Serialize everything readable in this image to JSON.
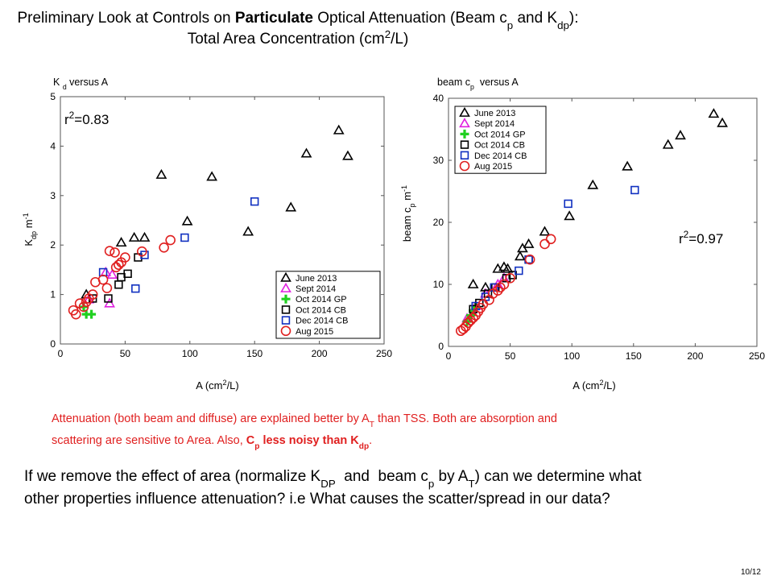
{
  "slide": {
    "title": [
      [
        {
          "text": "Preliminary Look at Controls on "
        },
        {
          "text": "Particulate",
          "style": "bold"
        },
        {
          "text": " Optical Attenuation (Beam c"
        },
        {
          "text": "p",
          "style": "sub"
        },
        {
          "text": " and K"
        },
        {
          "text": "dp",
          "style": "sub"
        },
        {
          "text": "):"
        }
      ],
      [
        {
          "text": "Total Area Concentration (cm"
        },
        {
          "text": "2",
          "style": "sup"
        },
        {
          "text": "/L)"
        }
      ]
    ],
    "note": [
      [
        {
          "text": "Attenuation (both beam and diffuse) are explained better by A"
        },
        {
          "text": "T",
          "style": "sub"
        },
        {
          "text": " than TSS. Both are absorption and"
        }
      ],
      [
        {
          "text": "scattering are sensitive to Area. Also, "
        },
        {
          "text": "C",
          "style": "bold"
        },
        {
          "text": "p",
          "style": "bold sub"
        },
        {
          "text": " less noisy than K",
          "style": "bold"
        },
        {
          "text": "dp",
          "style": "bold sub"
        },
        {
          "text": "."
        }
      ]
    ],
    "question": [
      [
        {
          "text": "If we remove the effect of area (normalize K"
        },
        {
          "text": "DP",
          "style": "sub"
        },
        {
          "text": "  and  beam c"
        },
        {
          "text": "p",
          "style": "sub"
        },
        {
          "text": " by A"
        },
        {
          "text": "T",
          "style": "sub"
        },
        {
          "text": ") can we determine what"
        }
      ],
      [
        {
          "text": "other properties influence attenuation? i.e What causes the scatter/spread in our data?"
        }
      ]
    ],
    "page": "10/12"
  },
  "chart_data": [
    {
      "type": "scatter",
      "title": [
        {
          "text": "K "
        },
        {
          "text": "d",
          "style": "sub"
        },
        {
          "text": " versus A"
        }
      ],
      "xlabel": [
        {
          "text": "A (cm"
        },
        {
          "text": "2",
          "style": "sup"
        },
        {
          "text": "/L)"
        }
      ],
      "ylabel": [
        {
          "text": "K"
        },
        {
          "text": "dp",
          "style": "sub"
        },
        {
          "text": " m"
        },
        {
          "text": "-1",
          "style": "sup"
        }
      ],
      "annotation": [
        {
          "text": "r"
        },
        {
          "text": "2",
          "style": "sup"
        },
        {
          "text": "=0.83"
        }
      ],
      "xlim": [
        0,
        250
      ],
      "xticks": [
        0,
        50,
        100,
        150,
        200,
        250
      ],
      "ylim": [
        0,
        5
      ],
      "yticks": [
        0,
        1,
        2,
        3,
        4,
        5
      ],
      "legend": "lower right",
      "series": [
        {
          "name": "June 2013",
          "color": "#000000",
          "marker": "triangle",
          "x": [
            20,
            47,
            57,
            65,
            78,
            98,
            117,
            145,
            178,
            190,
            215,
            222
          ],
          "values": [
            1.0,
            2.05,
            2.15,
            2.15,
            3.42,
            2.48,
            3.38,
            2.27,
            2.76,
            3.85,
            4.32,
            3.8
          ]
        },
        {
          "name": "Sept 2014",
          "color": "#e020e0",
          "marker": "triangle",
          "x": [
            22,
            35,
            38,
            40
          ],
          "values": [
            0.9,
            1.45,
            0.82,
            1.4
          ]
        },
        {
          "name": "Oct 2014 GP",
          "color": "#20d020",
          "marker": "plus",
          "x": [
            18,
            20,
            24
          ],
          "values": [
            0.75,
            0.6,
            0.6
          ]
        },
        {
          "name": "Oct 2014 CB",
          "color": "#000000",
          "marker": "square",
          "x": [
            25,
            37,
            45,
            47,
            52,
            60
          ],
          "values": [
            0.92,
            0.92,
            1.2,
            1.35,
            1.42,
            1.75
          ]
        },
        {
          "name": "Dec 2014 CB",
          "color": "#1030c0",
          "marker": "square",
          "x": [
            33,
            58,
            65,
            96,
            150
          ],
          "values": [
            1.45,
            1.12,
            1.8,
            2.15,
            2.88
          ]
        },
        {
          "name": "Aug 2015",
          "color": "#e02020",
          "marker": "circle",
          "x": [
            10,
            12,
            15,
            18,
            20,
            22,
            25,
            27,
            33,
            36,
            38,
            42,
            43,
            45,
            47,
            50,
            63,
            80,
            85
          ],
          "values": [
            0.68,
            0.6,
            0.82,
            0.75,
            0.85,
            0.92,
            1.0,
            1.25,
            1.3,
            1.13,
            1.88,
            1.85,
            1.55,
            1.6,
            1.65,
            1.75,
            1.87,
            1.95,
            2.1
          ]
        }
      ]
    },
    {
      "type": "scatter",
      "title": [
        {
          "text": "beam c"
        },
        {
          "text": "p",
          "style": "sub"
        },
        {
          "text": "  versus A"
        }
      ],
      "xlabel": [
        {
          "text": "A (cm"
        },
        {
          "text": "2",
          "style": "sup"
        },
        {
          "text": "/L)"
        }
      ],
      "ylabel": [
        {
          "text": "beam c"
        },
        {
          "text": "p",
          "style": "sub"
        },
        {
          "text": " m"
        },
        {
          "text": "-1",
          "style": "sup"
        }
      ],
      "annotation": [
        {
          "text": "r"
        },
        {
          "text": "2",
          "style": "sup"
        },
        {
          "text": "=0.97"
        }
      ],
      "xlim": [
        0,
        250
      ],
      "xticks": [
        0,
        50,
        100,
        150,
        200,
        250
      ],
      "ylim": [
        0,
        40
      ],
      "yticks": [
        0,
        10,
        20,
        30,
        40
      ],
      "legend": "upper left",
      "series": [
        {
          "name": "June 2013",
          "color": "#000000",
          "marker": "triangle",
          "x": [
            20,
            30,
            40,
            45,
            48,
            58,
            60,
            65,
            78,
            98,
            117,
            145,
            178,
            188,
            215,
            222
          ],
          "values": [
            10,
            9.5,
            12.5,
            12.8,
            12.5,
            14.5,
            15.8,
            16.5,
            18.5,
            21,
            26,
            29,
            32.5,
            34,
            37.5,
            36
          ]
        },
        {
          "name": "Sept 2014",
          "color": "#e020e0",
          "marker": "triangle",
          "x": [
            15,
            22,
            30,
            40,
            45
          ],
          "values": [
            4.5,
            6.5,
            8.5,
            10,
            11
          ]
        },
        {
          "name": "Oct 2014 GP",
          "color": "#20d020",
          "marker": "plus",
          "x": [
            15,
            18,
            20,
            22
          ],
          "values": [
            4,
            5,
            5.8,
            6.3
          ]
        },
        {
          "name": "Oct 2014 CB",
          "color": "#000000",
          "marker": "square",
          "x": [
            20,
            25,
            32,
            38,
            47,
            52,
            65
          ],
          "values": [
            6,
            7,
            8.5,
            9.5,
            11,
            11.5,
            14
          ]
        },
        {
          "name": "Dec 2014 CB",
          "color": "#1030c0",
          "marker": "square",
          "x": [
            22,
            30,
            37,
            57,
            65,
            97,
            151
          ],
          "values": [
            6.5,
            8,
            9.5,
            12.2,
            14,
            23,
            25.2
          ]
        },
        {
          "name": "Aug 2015",
          "color": "#e02020",
          "marker": "circle",
          "x": [
            10,
            12,
            14,
            16,
            18,
            20,
            22,
            24,
            26,
            28,
            33,
            36,
            40,
            42,
            45,
            50,
            66,
            78,
            83
          ],
          "values": [
            2.5,
            2.8,
            3.2,
            3.8,
            4.2,
            4.6,
            5,
            5.6,
            6.2,
            6.8,
            7.5,
            8.5,
            9,
            9.5,
            10,
            11,
            14,
            16.5,
            17.3
          ]
        }
      ]
    }
  ]
}
